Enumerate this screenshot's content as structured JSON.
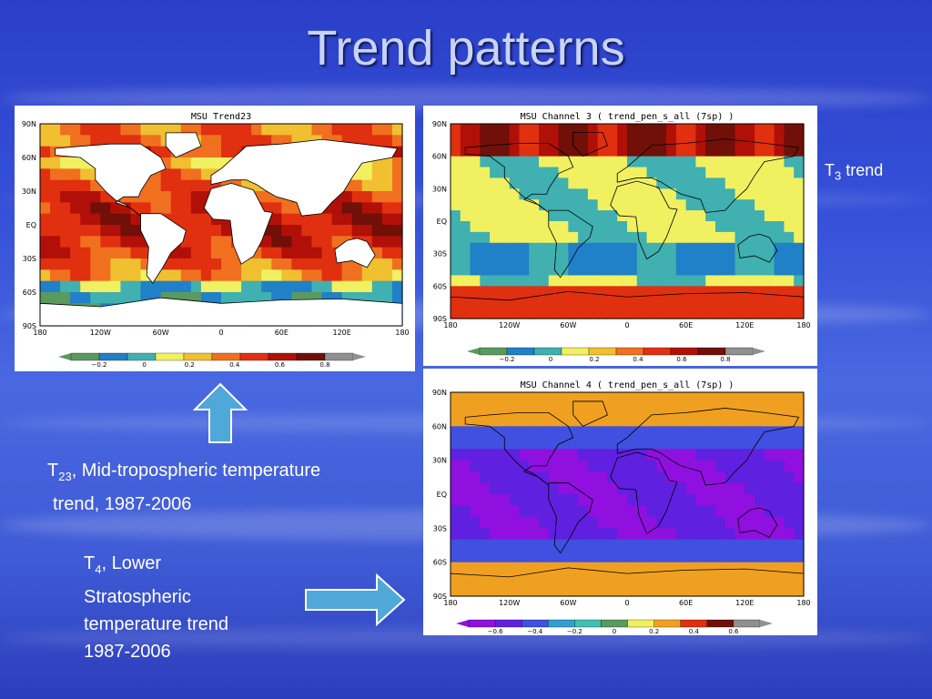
{
  "slide": {
    "title": "Trend patterns"
  },
  "maps": [
    {
      "id": "t23",
      "title": "MSU Trend23",
      "lat_labels": [
        "90N",
        "60N",
        "30N",
        "EQ",
        "30S",
        "60S",
        "90S"
      ],
      "lon_labels": [
        "180",
        "120W",
        "60W",
        "0",
        "60E",
        "120E",
        "180"
      ],
      "colorbar_ticks": [
        "−0.2",
        "0",
        "0.2",
        "0.4",
        "0.6",
        "0.8"
      ],
      "colors": [
        "#5a9a60",
        "#2080c8",
        "#40b0b0",
        "#f0f060",
        "#f0c030",
        "#f07020",
        "#e03010",
        "#b01008",
        "#701008",
        "#909090"
      ]
    },
    {
      "id": "t3",
      "title": "MSU Channel 3 ( trend_pen_s_all (7sp) )",
      "lat_labels": [
        "90N",
        "60N",
        "30N",
        "EQ",
        "30S",
        "60S",
        "90S"
      ],
      "lon_labels": [
        "180",
        "120W",
        "60W",
        "0",
        "60E",
        "120E",
        "180"
      ],
      "colorbar_ticks": [
        "−0.2",
        "0",
        "0.2",
        "0.4",
        "0.6",
        "0.8"
      ],
      "colors": [
        "#5a9a60",
        "#2080c8",
        "#40b0b0",
        "#f0f060",
        "#f0c030",
        "#f07020",
        "#e03010",
        "#b01008",
        "#701008",
        "#909090"
      ]
    },
    {
      "id": "t4",
      "title": "MSU Channel 4 ( trend_pen_s_all (7sp) )",
      "lat_labels": [
        "90N",
        "60N",
        "30N",
        "EQ",
        "30S",
        "60S",
        "90S"
      ],
      "lon_labels": [
        "180",
        "120W",
        "60W",
        "0",
        "60E",
        "120E",
        "180"
      ],
      "colorbar_ticks": [
        "−0.6",
        "−0.4",
        "−0.2",
        "0",
        "0.2",
        "0.4",
        "0.6"
      ],
      "colors": [
        "#9010e0",
        "#6020e0",
        "#4050e0",
        "#30a0d0",
        "#40c0b0",
        "#5a9a60",
        "#f0f060",
        "#f0a020",
        "#e03010",
        "#701008",
        "#909090"
      ]
    }
  ],
  "captions": {
    "t3_prefix": "T",
    "t3_sub": "3",
    "t3_rest": " trend",
    "t23_prefix": "T",
    "t23_sub": "23",
    "t23_line1": ", Mid-tropospheric temperature",
    "t23_line2": "trend, 1987-2006",
    "t4_prefix": "T",
    "t4_sub": "4",
    "t4_line1": ", Lower",
    "t4_line2": "Stratospheric",
    "t4_line3": "temperature trend",
    "t4_line4": "1987-2006"
  },
  "style": {
    "arrow_fill": "#50a8d8",
    "arrow_stroke": "#ffffff"
  }
}
